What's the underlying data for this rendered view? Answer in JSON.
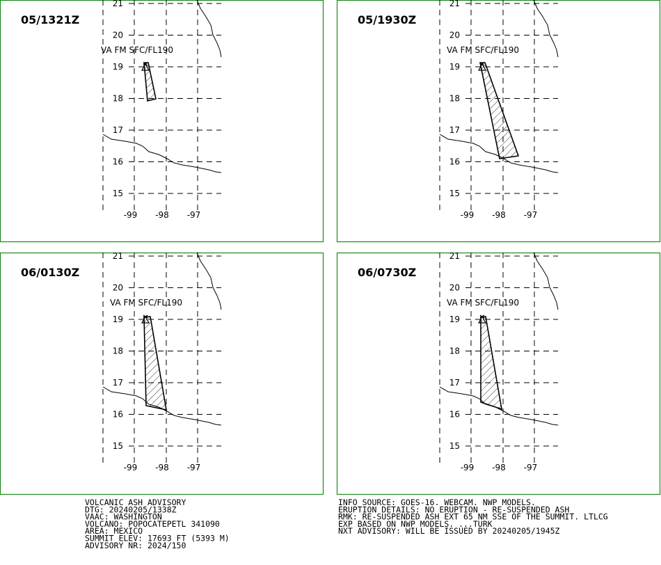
{
  "panels": [
    {
      "time": "05/1321Z",
      "level": "VA FM SFC/FL190"
    },
    {
      "time": "05/1930Z",
      "level": "VA FM SFC/FL190"
    },
    {
      "time": "06/0130Z",
      "level": "VA FM SFC/FL190"
    },
    {
      "time": "06/0730Z",
      "level": "VA FM SFC/FL190"
    }
  ],
  "lat_labels": [
    21,
    20,
    19,
    18,
    17,
    16,
    15
  ],
  "lon_labels": [
    -99,
    -98,
    -97
  ],
  "advisory_left": [
    "VOLCANIC ASH ADVISORY",
    "DTG: 20240205/1338Z",
    "VAAC: WASHINGTON",
    "VOLCANO: POPOCATEPETL 341090",
    "AREA: MEXICO",
    "SUMMIT ELEV: 17693 FT (5393 M)",
    "ADVISORY NR: 2024/150"
  ],
  "advisory_right": [
    "INFO SOURCE: GOES-16. WEBCAM. NWP MODELS.",
    "ERUPTION DETAILS: NO ERUPTION - RE-SUSPENDED ASH",
    "RMK: RE-SUSPENDED ASH EXT 65 NM SSE OF THE SUMMIT. LTLCG",
    "EXP BASED ON NWP MODELS. ...TURK",
    "NXT ADVISORY: WILL BE ISSUED BY 20240205/1945Z"
  ]
}
